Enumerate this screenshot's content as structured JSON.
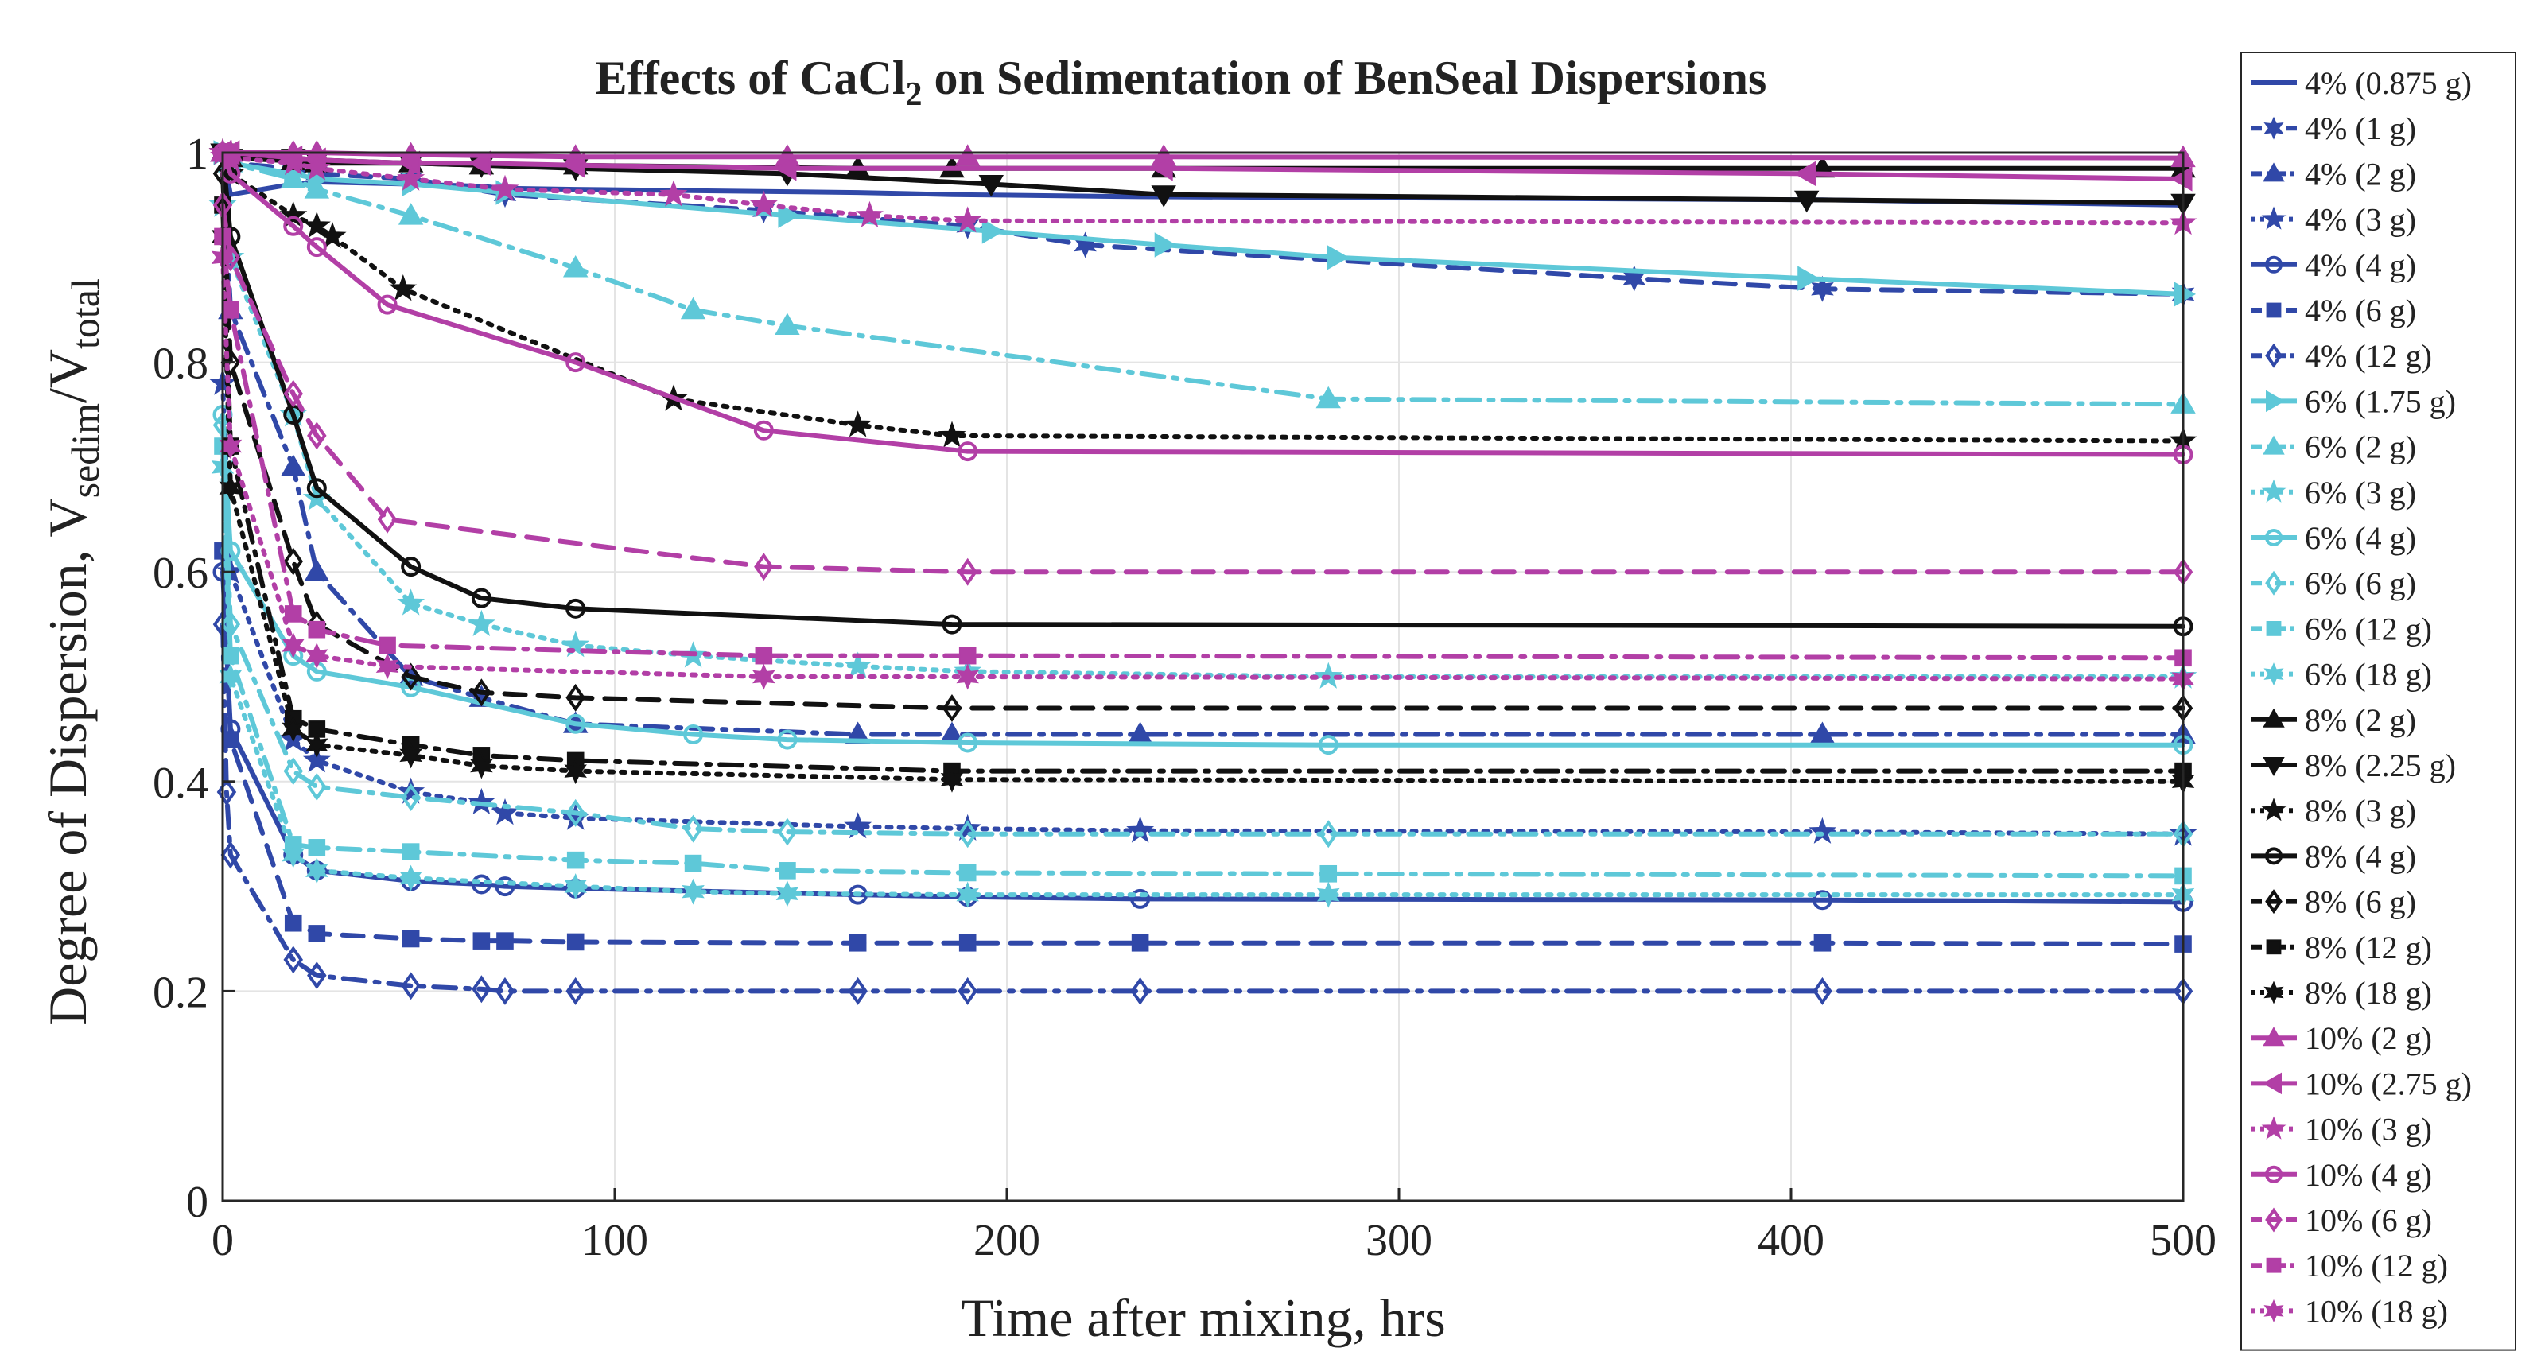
{
  "chart_data": {
    "type": "line",
    "title": "Effects of CaCl",
    "title_sub": "2",
    "title_tail": " on Sedimentation of BenSeal Dispersions",
    "xlabel": "Time after mixing, hrs",
    "ylabel_main": "Degree of Dispersion, V",
    "ylabel_sub1": "sedim",
    "ylabel_mid": "/V",
    "ylabel_sub2": "total",
    "xlim": [
      0,
      500
    ],
    "ylim": [
      0,
      1
    ],
    "xticks": [
      0,
      100,
      200,
      300,
      400,
      500
    ],
    "yticks": [
      0,
      0.2,
      0.4,
      0.6,
      0.8,
      1
    ],
    "ytick_labels": [
      "0",
      "0.2",
      "0.4",
      "0.6",
      "0.8",
      "1"
    ],
    "grid": true,
    "legend_position": "outside-right",
    "colors": {
      "blue": "#3048a8",
      "cyan": "#5ec8d8",
      "black": "#111111",
      "magenta": "#b23fa6"
    },
    "series": [
      {
        "name": "4% (0.875 g)",
        "color": "#3048a8",
        "dash": "solid",
        "marker": "none",
        "x": [
          0,
          2,
          18,
          24,
          48,
          66,
          72,
          90,
          162,
          186,
          234,
          408,
          500
        ],
        "y": [
          1,
          0.96,
          0.97,
          0.972,
          0.97,
          0.968,
          0.966,
          0.965,
          0.962,
          0.96,
          0.958,
          0.955,
          0.95
        ]
      },
      {
        "name": "4% (1 g)",
        "color": "#3048a8",
        "dash": "dash",
        "marker": "star6",
        "x": [
          0,
          2,
          18,
          24,
          48,
          72,
          138,
          190,
          220,
          360,
          408,
          500
        ],
        "y": [
          1,
          0.99,
          0.985,
          0.98,
          0.975,
          0.96,
          0.945,
          0.93,
          0.912,
          0.88,
          0.87,
          0.865
        ]
      },
      {
        "name": "4% (2 g)",
        "color": "#3048a8",
        "dash": "dashdot",
        "marker": "triangle-up",
        "x": [
          0,
          2,
          18,
          24,
          48,
          66,
          90,
          162,
          186,
          234,
          408,
          500
        ],
        "y": [
          1,
          0.85,
          0.7,
          0.6,
          0.5,
          0.48,
          0.455,
          0.445,
          0.445,
          0.445,
          0.445,
          0.445
        ]
      },
      {
        "name": "4% (3 g)",
        "color": "#3048a8",
        "dash": "dot",
        "marker": "star5",
        "x": [
          0,
          2,
          18,
          24,
          48,
          66,
          72,
          90,
          162,
          190,
          234,
          408,
          500
        ],
        "y": [
          0.78,
          0.6,
          0.44,
          0.42,
          0.39,
          0.38,
          0.37,
          0.365,
          0.357,
          0.355,
          0.353,
          0.352,
          0.35
        ]
      },
      {
        "name": "4% (4 g)",
        "color": "#3048a8",
        "dash": "solid",
        "marker": "circle",
        "x": [
          0,
          2,
          18,
          24,
          48,
          66,
          72,
          90,
          162,
          190,
          234,
          408,
          500
        ],
        "y": [
          0.6,
          0.45,
          0.33,
          0.315,
          0.305,
          0.302,
          0.3,
          0.298,
          0.292,
          0.29,
          0.288,
          0.287,
          0.285
        ]
      },
      {
        "name": "4% (6 g)",
        "color": "#3048a8",
        "dash": "dash",
        "marker": "square",
        "x": [
          0,
          2,
          18,
          24,
          48,
          66,
          72,
          90,
          162,
          190,
          234,
          408,
          500
        ],
        "y": [
          0.62,
          0.44,
          0.265,
          0.255,
          0.25,
          0.248,
          0.248,
          0.247,
          0.246,
          0.246,
          0.246,
          0.246,
          0.245
        ]
      },
      {
        "name": "4% (12 g)",
        "color": "#3048a8",
        "dash": "dashdot",
        "marker": "diamond",
        "x": [
          0,
          1,
          2,
          18,
          24,
          48,
          66,
          72,
          90,
          162,
          190,
          234,
          408,
          500
        ],
        "y": [
          0.55,
          0.39,
          0.33,
          0.23,
          0.215,
          0.205,
          0.202,
          0.2,
          0.2,
          0.2,
          0.2,
          0.2,
          0.2,
          0.2
        ]
      },
      {
        "name": "6% (1.75 g)",
        "color": "#5ec8d8",
        "dash": "solid",
        "marker": "triangle-right",
        "x": [
          0,
          2,
          18,
          24,
          48,
          72,
          144,
          196,
          240,
          284,
          404,
          500
        ],
        "y": [
          1,
          0.99,
          0.98,
          0.975,
          0.97,
          0.962,
          0.94,
          0.925,
          0.912,
          0.9,
          0.88,
          0.865
        ]
      },
      {
        "name": "6% (2 g)",
        "color": "#5ec8d8",
        "dash": "dashdot",
        "marker": "triangle-up",
        "x": [
          0,
          2,
          18,
          24,
          48,
          90,
          120,
          144,
          282,
          500
        ],
        "y": [
          1,
          0.99,
          0.975,
          0.965,
          0.94,
          0.89,
          0.85,
          0.835,
          0.765,
          0.76
        ]
      },
      {
        "name": "6% (3 g)",
        "color": "#5ec8d8",
        "dash": "dot",
        "marker": "star5",
        "x": [
          0,
          2,
          18,
          24,
          48,
          66,
          90,
          120,
          162,
          190,
          282,
          500
        ],
        "y": [
          0.95,
          0.9,
          0.75,
          0.67,
          0.57,
          0.55,
          0.53,
          0.52,
          0.51,
          0.505,
          0.5,
          0.5
        ]
      },
      {
        "name": "6% (4 g)",
        "color": "#5ec8d8",
        "dash": "solid",
        "marker": "circle",
        "x": [
          0,
          2,
          18,
          24,
          48,
          90,
          120,
          144,
          190,
          282,
          500
        ],
        "y": [
          0.75,
          0.62,
          0.52,
          0.505,
          0.49,
          0.455,
          0.445,
          0.44,
          0.437,
          0.435,
          0.435
        ]
      },
      {
        "name": "6% (6 g)",
        "color": "#5ec8d8",
        "dash": "dashdot",
        "marker": "diamond",
        "x": [
          0,
          2,
          18,
          24,
          48,
          90,
          120,
          144,
          190,
          282,
          500
        ],
        "y": [
          0.74,
          0.55,
          0.41,
          0.395,
          0.385,
          0.37,
          0.355,
          0.352,
          0.35,
          0.35,
          0.35
        ]
      },
      {
        "name": "6% (12 g)",
        "color": "#5ec8d8",
        "dash": "dashdot",
        "marker": "square",
        "x": [
          0,
          2,
          18,
          24,
          48,
          90,
          120,
          144,
          190,
          282,
          500
        ],
        "y": [
          0.72,
          0.52,
          0.34,
          0.337,
          0.333,
          0.325,
          0.322,
          0.315,
          0.313,
          0.312,
          0.31
        ]
      },
      {
        "name": "6% (18 g)",
        "color": "#5ec8d8",
        "dash": "dot",
        "marker": "star6",
        "x": [
          0,
          2,
          18,
          24,
          48,
          90,
          120,
          144,
          190,
          282,
          500
        ],
        "y": [
          0.7,
          0.5,
          0.33,
          0.315,
          0.308,
          0.3,
          0.295,
          0.293,
          0.292,
          0.292,
          0.292
        ]
      },
      {
        "name": "8% (2 g)",
        "color": "#111111",
        "dash": "solid",
        "marker": "triangle-up",
        "x": [
          0,
          2,
          18,
          24,
          48,
          66,
          90,
          162,
          186,
          240,
          408,
          500
        ],
        "y": [
          1,
          0.995,
          0.992,
          0.99,
          0.99,
          0.988,
          0.988,
          0.985,
          0.985,
          0.985,
          0.985,
          0.985
        ]
      },
      {
        "name": "8% (2.25 g)",
        "color": "#111111",
        "dash": "solid",
        "marker": "triangle-down",
        "x": [
          0,
          2,
          18,
          24,
          48,
          66,
          90,
          144,
          196,
          240,
          404,
          500
        ],
        "y": [
          1,
          0.995,
          0.995,
          0.993,
          0.99,
          0.988,
          0.985,
          0.98,
          0.97,
          0.96,
          0.955,
          0.952
        ]
      },
      {
        "name": "8% (3 g)",
        "color": "#111111",
        "dash": "dot",
        "marker": "star5",
        "x": [
          0,
          2,
          18,
          24,
          28,
          46,
          115,
          162,
          186,
          500
        ],
        "y": [
          1,
          0.98,
          0.94,
          0.93,
          0.92,
          0.87,
          0.765,
          0.74,
          0.73,
          0.725
        ]
      },
      {
        "name": "8% (4 g)",
        "color": "#111111",
        "dash": "solid",
        "marker": "circle",
        "x": [
          0,
          2,
          18,
          24,
          48,
          66,
          90,
          186,
          500
        ],
        "y": [
          1,
          0.92,
          0.75,
          0.68,
          0.605,
          0.575,
          0.565,
          0.55,
          0.548
        ]
      },
      {
        "name": "8% (6 g)",
        "color": "#111111",
        "dash": "dash",
        "marker": "diamond",
        "x": [
          0,
          2,
          18,
          24,
          48,
          66,
          90,
          186,
          500
        ],
        "y": [
          0.98,
          0.8,
          0.61,
          0.55,
          0.5,
          0.485,
          0.48,
          0.47,
          0.47
        ]
      },
      {
        "name": "8% (12 g)",
        "color": "#111111",
        "dash": "dashdot",
        "marker": "square",
        "x": [
          0,
          2,
          18,
          24,
          48,
          66,
          90,
          186,
          500
        ],
        "y": [
          0.95,
          0.72,
          0.46,
          0.45,
          0.435,
          0.425,
          0.42,
          0.41,
          0.41
        ]
      },
      {
        "name": "8% (18 g)",
        "color": "#111111",
        "dash": "dot",
        "marker": "star6",
        "x": [
          0,
          2,
          18,
          24,
          48,
          66,
          90,
          186,
          500
        ],
        "y": [
          0.92,
          0.68,
          0.45,
          0.435,
          0.425,
          0.415,
          0.41,
          0.402,
          0.4
        ]
      },
      {
        "name": "10% (2 g)",
        "color": "#b23fa6",
        "dash": "solid",
        "marker": "triangle-up",
        "x": [
          0,
          2,
          18,
          24,
          48,
          90,
          144,
          190,
          240,
          500
        ],
        "y": [
          1,
          1,
          1,
          1,
          0.998,
          0.996,
          0.996,
          0.996,
          0.996,
          0.995
        ]
      },
      {
        "name": "10% (2.75 g)",
        "color": "#b23fa6",
        "dash": "solid",
        "marker": "triangle-left",
        "x": [
          0,
          2,
          18,
          24,
          48,
          66,
          90,
          144,
          240,
          404,
          500
        ],
        "y": [
          1,
          1,
          0.995,
          0.993,
          0.99,
          0.99,
          0.988,
          0.985,
          0.985,
          0.98,
          0.975
        ]
      },
      {
        "name": "10% (3 g)",
        "color": "#b23fa6",
        "dash": "dot",
        "marker": "star5",
        "x": [
          0,
          2,
          18,
          24,
          48,
          72,
          115,
          138,
          165,
          190,
          500
        ],
        "y": [
          1,
          0.995,
          0.99,
          0.985,
          0.975,
          0.965,
          0.96,
          0.95,
          0.94,
          0.935,
          0.933
        ]
      },
      {
        "name": "10% (4 g)",
        "color": "#b23fa6",
        "dash": "solid",
        "marker": "circle",
        "x": [
          0,
          2,
          18,
          24,
          42,
          90,
          138,
          190,
          500
        ],
        "y": [
          1,
          0.98,
          0.93,
          0.91,
          0.855,
          0.8,
          0.735,
          0.715,
          0.712
        ]
      },
      {
        "name": "10% (6 g)",
        "color": "#b23fa6",
        "dash": "dash",
        "marker": "diamond",
        "x": [
          0,
          2,
          18,
          24,
          42,
          138,
          190,
          500
        ],
        "y": [
          0.95,
          0.9,
          0.77,
          0.73,
          0.65,
          0.605,
          0.6,
          0.6
        ]
      },
      {
        "name": "10% (12 g)",
        "color": "#b23fa6",
        "dash": "dashdot",
        "marker": "square",
        "x": [
          0,
          2,
          18,
          24,
          42,
          138,
          190,
          500
        ],
        "y": [
          0.92,
          0.85,
          0.56,
          0.545,
          0.53,
          0.52,
          0.52,
          0.518
        ]
      },
      {
        "name": "10% (18 g)",
        "color": "#b23fa6",
        "dash": "dot",
        "marker": "star6",
        "x": [
          0,
          2,
          18,
          24,
          42,
          138,
          190,
          500
        ],
        "y": [
          0.9,
          0.72,
          0.53,
          0.52,
          0.51,
          0.5,
          0.5,
          0.498
        ]
      }
    ]
  }
}
